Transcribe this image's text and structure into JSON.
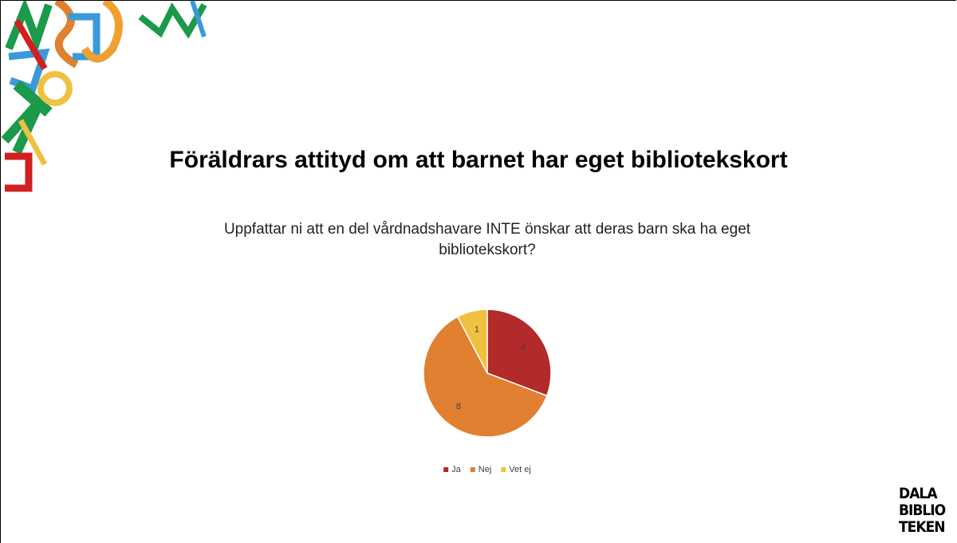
{
  "chart_data": {
    "type": "pie",
    "title": "Föräldrars attityd om att barnet har eget bibliotekskort",
    "subtitle": "Uppfattar ni att en del vårdnadshavare INTE önskar att deras barn ska ha eget bibliotekskort?",
    "categories": [
      "Ja",
      "Nej",
      "Vet ej"
    ],
    "values": [
      4,
      8,
      1
    ],
    "colors": [
      "#b22a2a",
      "#e08030",
      "#f0c040"
    ],
    "legend": "bottom"
  },
  "logo": {
    "lines": [
      "DALA",
      "BIBLIO",
      "TEKEN"
    ]
  }
}
